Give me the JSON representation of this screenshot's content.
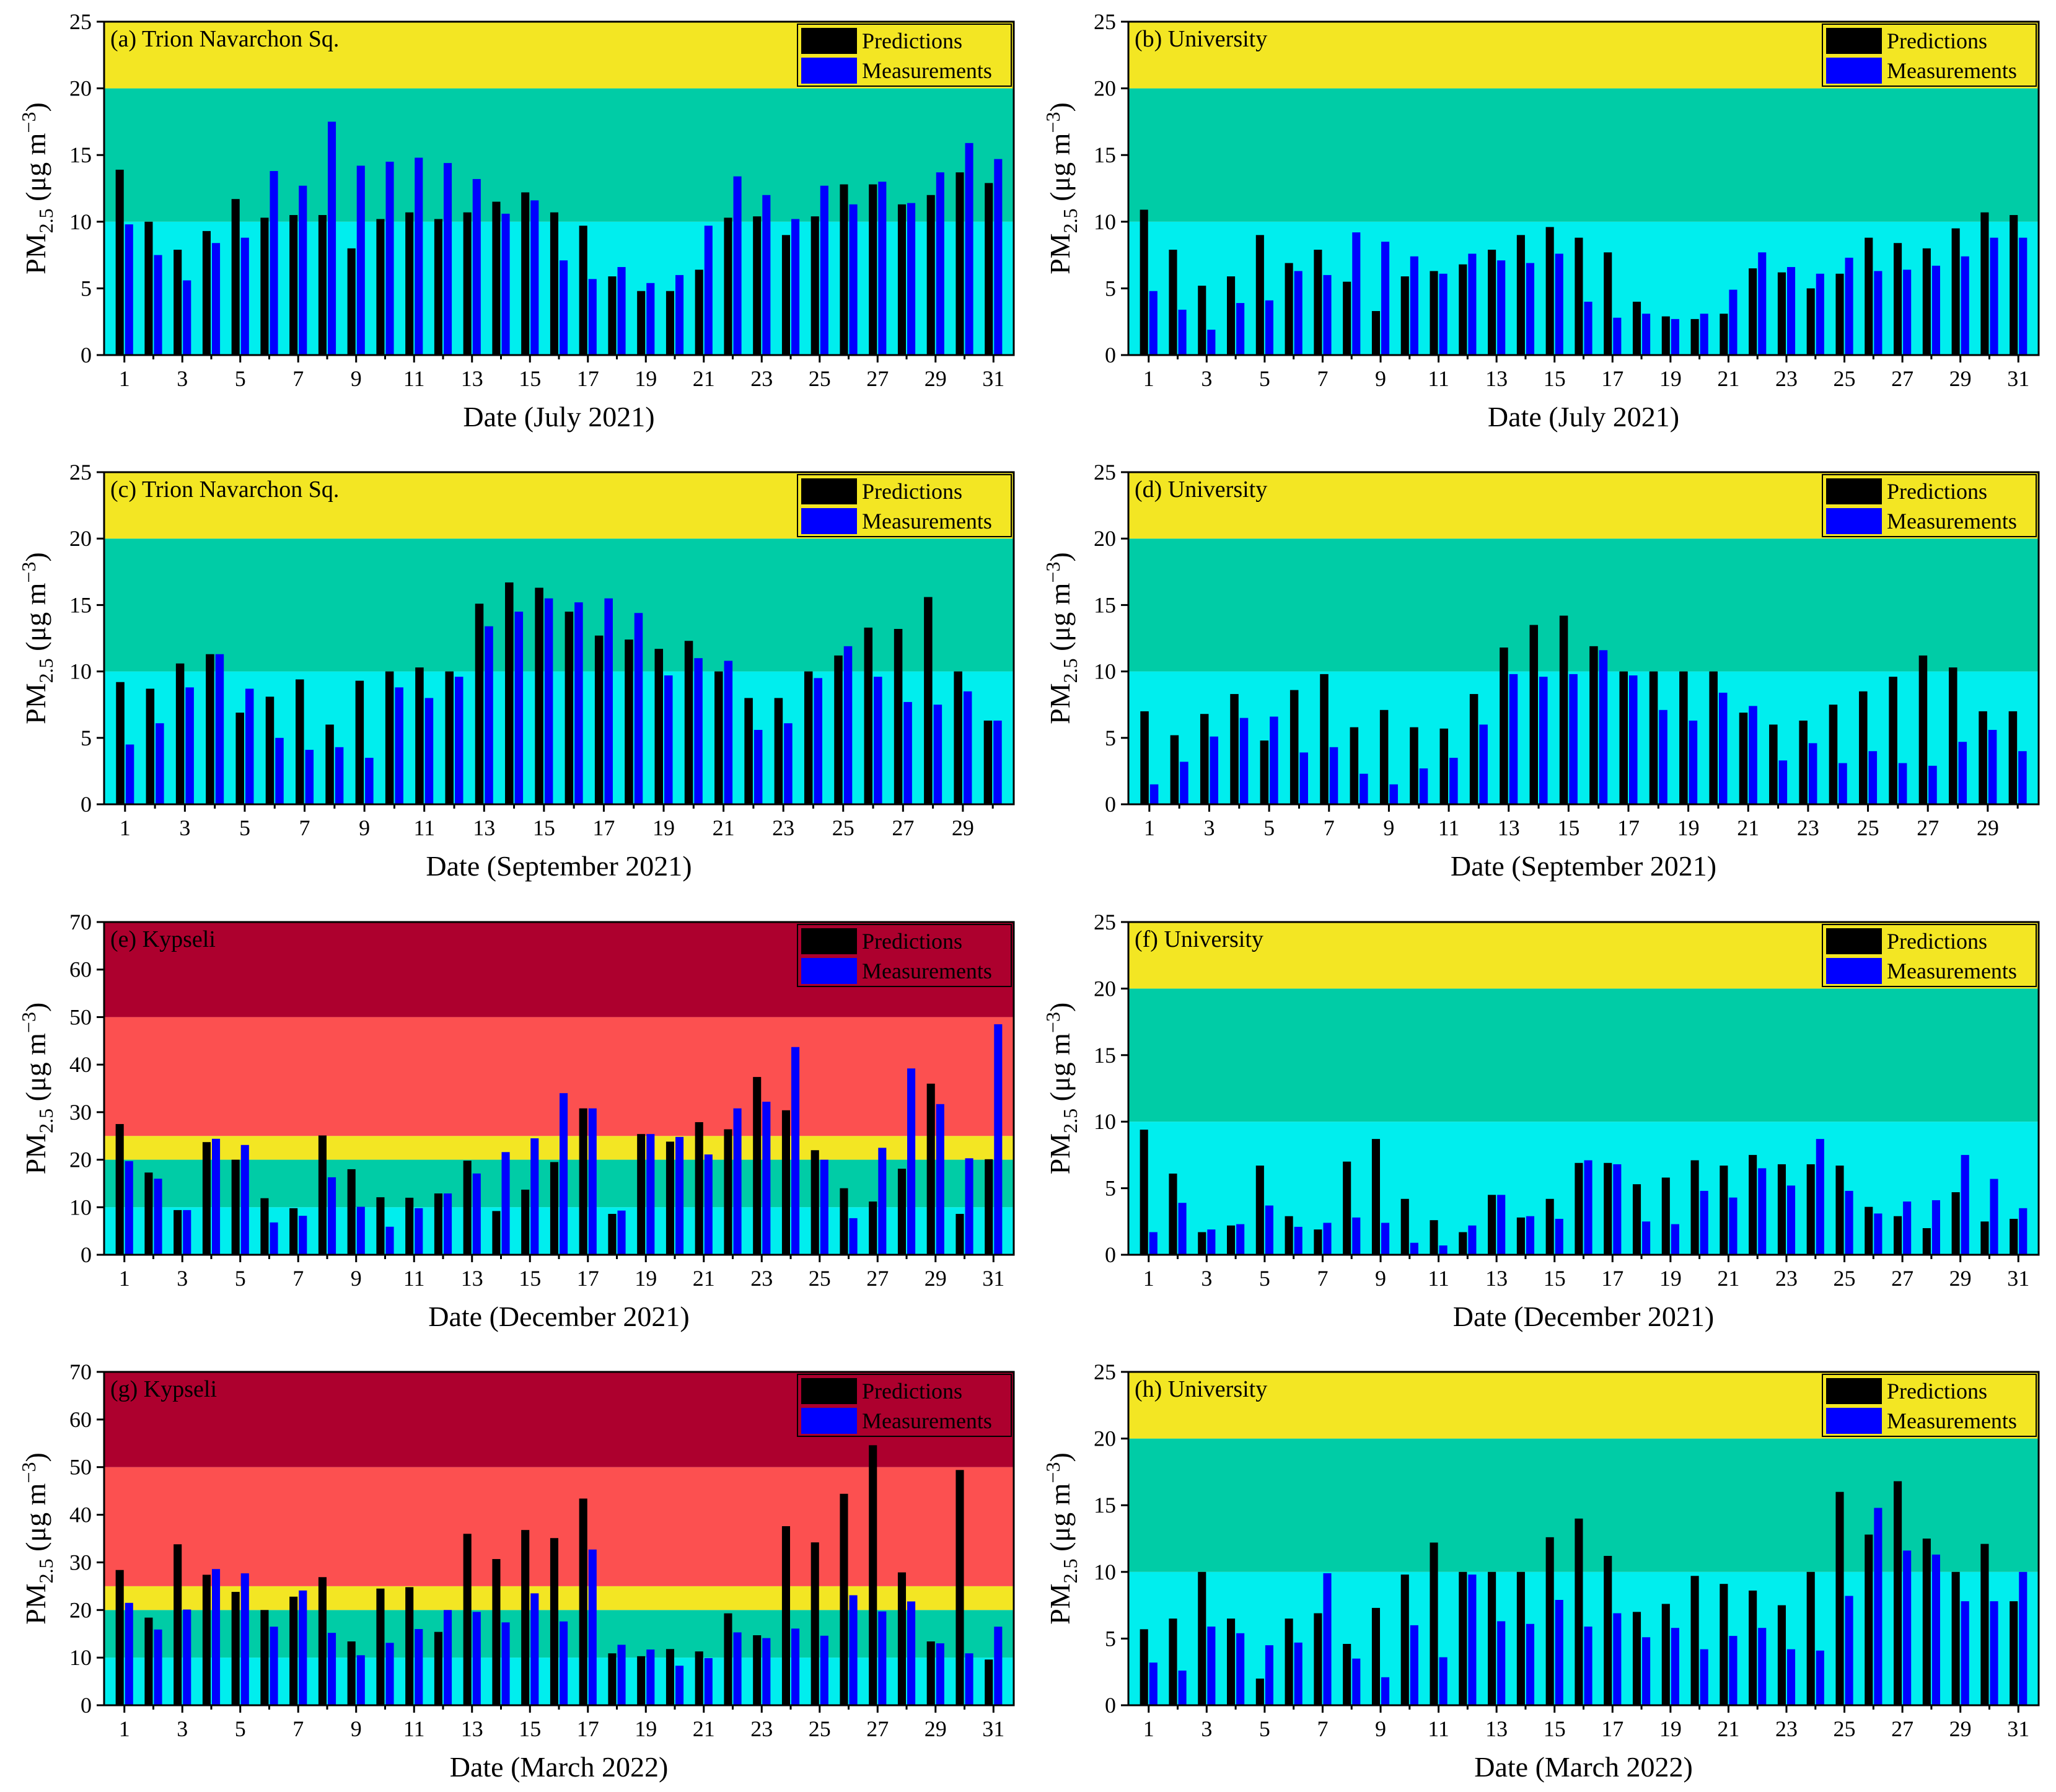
{
  "colors": {
    "prediction": "#000000",
    "measurement": "#0000ff",
    "band_cyan": "#00eeee",
    "band_teal": "#00cca6",
    "band_yellow": "#f3e623",
    "band_salmon": "#fc5050",
    "band_crimson": "#ad002e"
  },
  "chart_data": [
    {
      "type": "bar",
      "panel": "(a) Trion Navarchon Sq.",
      "xlabel": "Date (July 2021)",
      "ylabel": "PM2.5 (μg m−3)",
      "ylabel_base": "PM",
      "ylabel_sub": "2.5",
      "ylabel_unit": " (μg m",
      "ylabel_sup": "−3",
      "ylabel_end": ")",
      "ylim": [
        0,
        25
      ],
      "yticks": [
        0,
        5,
        10,
        15,
        20,
        25
      ],
      "xticks": [
        1,
        3,
        5,
        7,
        9,
        11,
        13,
        15,
        17,
        19,
        21,
        23,
        25,
        27,
        29,
        31
      ],
      "legend": [
        "Predictions",
        "Measurements"
      ],
      "legend_position": "top-right",
      "bands": [
        {
          "from": 0,
          "to": 10,
          "color": "#00eeee"
        },
        {
          "from": 10,
          "to": 20,
          "color": "#00cca6"
        },
        {
          "from": 20,
          "to": 25,
          "color": "#f3e623"
        }
      ],
      "series": [
        {
          "name": "Predictions",
          "values": [
            13.9,
            10.0,
            7.9,
            9.3,
            11.7,
            10.3,
            10.5,
            10.5,
            8.0,
            10.2,
            10.7,
            10.2,
            10.7,
            11.5,
            12.2,
            10.7,
            9.7,
            5.9,
            4.8,
            4.8,
            6.4,
            10.3,
            10.4,
            9.0,
            10.4,
            12.8,
            12.8,
            11.3,
            12.0,
            13.7,
            12.9
          ]
        },
        {
          "name": "Measurements",
          "values": [
            9.8,
            7.5,
            5.6,
            8.4,
            8.8,
            13.8,
            12.7,
            17.5,
            14.2,
            14.5,
            14.8,
            14.4,
            13.2,
            10.6,
            11.6,
            7.1,
            5.7,
            6.6,
            5.4,
            6.0,
            9.7,
            13.4,
            12.0,
            10.2,
            12.7,
            11.3,
            13.0,
            11.4,
            13.7,
            15.9,
            14.7
          ]
        }
      ]
    },
    {
      "type": "bar",
      "panel": "(b) University",
      "xlabel": "Date (July 2021)",
      "ylabel": "PM2.5 (μg m−3)",
      "ylabel_base": "PM",
      "ylabel_sub": "2.5",
      "ylabel_unit": " (μg m",
      "ylabel_sup": "−3",
      "ylabel_end": ")",
      "ylim": [
        0,
        25
      ],
      "yticks": [
        0,
        5,
        10,
        15,
        20,
        25
      ],
      "xticks": [
        1,
        3,
        5,
        7,
        9,
        11,
        13,
        15,
        17,
        19,
        21,
        23,
        25,
        27,
        29,
        31
      ],
      "legend": [
        "Predictions",
        "Measurements"
      ],
      "legend_position": "top-right",
      "bands": [
        {
          "from": 0,
          "to": 10,
          "color": "#00eeee"
        },
        {
          "from": 10,
          "to": 20,
          "color": "#00cca6"
        },
        {
          "from": 20,
          "to": 25,
          "color": "#f3e623"
        }
      ],
      "series": [
        {
          "name": "Predictions",
          "values": [
            10.9,
            7.9,
            5.2,
            5.9,
            9.0,
            6.9,
            7.9,
            5.5,
            3.3,
            5.9,
            6.3,
            6.8,
            7.9,
            9.0,
            9.6,
            8.8,
            7.7,
            4.0,
            2.9,
            2.7,
            3.1,
            6.5,
            6.2,
            5.0,
            6.1,
            8.8,
            8.4,
            8.0,
            9.5,
            10.7,
            10.5
          ]
        },
        {
          "name": "Measurements",
          "values": [
            4.8,
            3.4,
            1.9,
            3.9,
            4.1,
            6.3,
            6.0,
            9.2,
            8.5,
            7.4,
            6.1,
            7.6,
            7.1,
            6.9,
            7.6,
            4.0,
            2.8,
            3.1,
            2.7,
            3.1,
            4.9,
            7.7,
            6.6,
            6.1,
            7.3,
            6.3,
            6.4,
            6.7,
            7.4,
            8.8,
            8.8
          ]
        }
      ]
    },
    {
      "type": "bar",
      "panel": "(c) Trion Navarchon Sq.",
      "xlabel": "Date (September 2021)",
      "ylabel": "PM2.5 (μg m−3)",
      "ylabel_base": "PM",
      "ylabel_sub": "2.5",
      "ylabel_unit": " (μg m",
      "ylabel_sup": "−3",
      "ylabel_end": ")",
      "ylim": [
        0,
        25
      ],
      "yticks": [
        0,
        5,
        10,
        15,
        20,
        25
      ],
      "xticks": [
        1,
        3,
        5,
        7,
        9,
        11,
        13,
        15,
        17,
        19,
        21,
        23,
        25,
        27,
        29
      ],
      "legend": [
        "Predictions",
        "Measurements"
      ],
      "legend_position": "top-right",
      "bands": [
        {
          "from": 0,
          "to": 10,
          "color": "#00eeee"
        },
        {
          "from": 10,
          "to": 20,
          "color": "#00cca6"
        },
        {
          "from": 20,
          "to": 25,
          "color": "#f3e623"
        }
      ],
      "series": [
        {
          "name": "Predictions",
          "values": [
            9.2,
            8.7,
            10.6,
            11.3,
            6.9,
            8.1,
            9.4,
            6.0,
            9.3,
            10.0,
            10.3,
            10.0,
            15.1,
            16.7,
            16.3,
            14.5,
            12.7,
            12.4,
            11.7,
            12.3,
            10.0,
            8.0,
            8.0,
            10.0,
            11.2,
            13.3,
            13.2,
            15.6,
            10.0,
            6.3
          ]
        },
        {
          "name": "Measurements",
          "values": [
            4.5,
            6.1,
            8.8,
            11.3,
            8.7,
            5.0,
            4.1,
            4.3,
            3.5,
            8.8,
            8.0,
            9.6,
            13.4,
            14.5,
            15.5,
            15.2,
            15.5,
            14.4,
            9.7,
            11.0,
            10.8,
            5.6,
            6.1,
            9.5,
            11.9,
            9.6,
            7.7,
            7.5,
            8.5,
            6.3
          ]
        }
      ]
    },
    {
      "type": "bar",
      "panel": "(d) University",
      "xlabel": "Date (September 2021)",
      "ylabel": "PM2.5 (μg m−3)",
      "ylabel_base": "PM",
      "ylabel_sub": "2.5",
      "ylabel_unit": " (μg m",
      "ylabel_sup": "−3",
      "ylabel_end": ")",
      "ylim": [
        0,
        25
      ],
      "yticks": [
        0,
        5,
        10,
        15,
        20,
        25
      ],
      "xticks": [
        1,
        3,
        5,
        7,
        9,
        11,
        13,
        15,
        17,
        19,
        21,
        23,
        25,
        27,
        29
      ],
      "legend": [
        "Predictions",
        "Measurements"
      ],
      "legend_position": "top-right",
      "bands": [
        {
          "from": 0,
          "to": 10,
          "color": "#00eeee"
        },
        {
          "from": 10,
          "to": 20,
          "color": "#00cca6"
        },
        {
          "from": 20,
          "to": 25,
          "color": "#f3e623"
        }
      ],
      "series": [
        {
          "name": "Predictions",
          "values": [
            7.0,
            5.2,
            6.8,
            8.3,
            4.8,
            8.6,
            9.8,
            5.8,
            7.1,
            5.8,
            5.7,
            8.3,
            11.8,
            13.5,
            14.2,
            11.9,
            10.0,
            10.0,
            10.0,
            10.0,
            6.9,
            6.0,
            6.3,
            7.5,
            8.5,
            9.6,
            11.2,
            10.3,
            7.0,
            7.0
          ]
        },
        {
          "name": "Measurements",
          "values": [
            1.5,
            3.2,
            5.1,
            6.5,
            6.6,
            3.9,
            4.3,
            2.3,
            1.5,
            2.7,
            3.5,
            6.0,
            9.8,
            9.6,
            9.8,
            11.6,
            9.7,
            7.1,
            6.3,
            8.4,
            7.4,
            3.3,
            4.6,
            3.1,
            4.0,
            3.1,
            2.9,
            4.7,
            5.6,
            4.0
          ]
        }
      ]
    },
    {
      "type": "bar",
      "panel": "(e) Kypseli",
      "xlabel": "Date (December 2021)",
      "ylabel": "PM2.5 (μg m−3)",
      "ylabel_base": "PM",
      "ylabel_sub": "2.5",
      "ylabel_unit": " (μg m",
      "ylabel_sup": "−3",
      "ylabel_end": ")",
      "ylim": [
        0,
        70
      ],
      "yticks": [
        0,
        10,
        20,
        30,
        40,
        50,
        60,
        70
      ],
      "xticks": [
        1,
        3,
        5,
        7,
        9,
        11,
        13,
        15,
        17,
        19,
        21,
        23,
        25,
        27,
        29,
        31
      ],
      "legend": [
        "Predictions",
        "Measurements"
      ],
      "legend_position": "top-right",
      "bands": [
        {
          "from": 0,
          "to": 10,
          "color": "#00eeee"
        },
        {
          "from": 10,
          "to": 20,
          "color": "#00cca6"
        },
        {
          "from": 20,
          "to": 25,
          "color": "#f3e623"
        },
        {
          "from": 25,
          "to": 50,
          "color": "#fc5050"
        },
        {
          "from": 50,
          "to": 70,
          "color": "#ad002e"
        }
      ],
      "series": [
        {
          "name": "Predictions",
          "values": [
            27.5,
            17.3,
            9.4,
            23.7,
            20.0,
            11.9,
            9.8,
            25.1,
            18.0,
            12.1,
            12.0,
            12.9,
            19.8,
            9.2,
            13.7,
            19.5,
            30.8,
            8.6,
            25.4,
            23.8,
            27.9,
            26.4,
            37.4,
            30.4,
            22.0,
            14.0,
            11.2,
            18.1,
            36.0,
            8.6,
            20.1
          ]
        },
        {
          "name": "Measurements",
          "values": [
            19.7,
            16.0,
            9.4,
            24.4,
            23.1,
            6.8,
            8.2,
            16.3,
            10.1,
            5.9,
            9.8,
            12.9,
            17.1,
            21.6,
            24.5,
            34.0,
            30.8,
            9.3,
            25.4,
            24.8,
            21.1,
            30.8,
            32.2,
            43.7,
            20.0,
            7.7,
            22.5,
            39.2,
            31.7,
            20.3,
            48.5
          ]
        }
      ]
    },
    {
      "type": "bar",
      "panel": "(f) University",
      "xlabel": "Date (December 2021)",
      "ylabel": "PM2.5 (μg m−3)",
      "ylabel_base": "PM",
      "ylabel_sub": "2.5",
      "ylabel_unit": " (μg m",
      "ylabel_sup": "−3",
      "ylabel_end": ")",
      "ylim": [
        0,
        25
      ],
      "yticks": [
        0,
        5,
        10,
        15,
        20,
        25
      ],
      "xticks": [
        1,
        3,
        5,
        7,
        9,
        11,
        13,
        15,
        17,
        19,
        21,
        23,
        25,
        27,
        29,
        31
      ],
      "legend": [
        "Predictions",
        "Measurements"
      ],
      "legend_position": "top-right",
      "bands": [
        {
          "from": 0,
          "to": 10,
          "color": "#00eeee"
        },
        {
          "from": 10,
          "to": 20,
          "color": "#00cca6"
        },
        {
          "from": 20,
          "to": 25,
          "color": "#f3e623"
        }
      ],
      "series": [
        {
          "name": "Predictions",
          "values": [
            9.4,
            6.1,
            1.7,
            2.2,
            6.7,
            2.9,
            1.9,
            7.0,
            8.7,
            4.2,
            2.6,
            1.7,
            4.5,
            2.8,
            4.2,
            6.9,
            6.9,
            5.3,
            5.8,
            7.1,
            6.7,
            7.5,
            6.8,
            6.8,
            6.7,
            3.6,
            2.9,
            2.0,
            4.7,
            2.5,
            2.7
          ]
        },
        {
          "name": "Measurements",
          "values": [
            1.7,
            3.9,
            1.9,
            2.3,
            3.7,
            2.1,
            2.4,
            2.8,
            2.4,
            0.9,
            0.7,
            2.2,
            4.5,
            2.9,
            2.7,
            7.1,
            6.8,
            2.5,
            2.3,
            4.8,
            4.3,
            6.5,
            5.2,
            8.7,
            4.8,
            3.1,
            4.0,
            4.1,
            7.5,
            5.7,
            3.5
          ]
        }
      ]
    },
    {
      "type": "bar",
      "panel": "(g) Kypseli",
      "xlabel": "Date (March 2022)",
      "ylabel": "PM2.5 (μg m−3)",
      "ylabel_base": "PM",
      "ylabel_sub": "2.5",
      "ylabel_unit": " (μg m",
      "ylabel_sup": "−3",
      "ylabel_end": ")",
      "ylim": [
        0,
        70
      ],
      "yticks": [
        0,
        10,
        20,
        30,
        40,
        50,
        60,
        70
      ],
      "xticks": [
        1,
        3,
        5,
        7,
        9,
        11,
        13,
        15,
        17,
        19,
        21,
        23,
        25,
        27,
        29,
        31
      ],
      "legend": [
        "Predictions",
        "Measurements"
      ],
      "legend_position": "top-right",
      "bands": [
        {
          "from": 0,
          "to": 10,
          "color": "#00eeee"
        },
        {
          "from": 10,
          "to": 20,
          "color": "#00cca6"
        },
        {
          "from": 20,
          "to": 25,
          "color": "#f3e623"
        },
        {
          "from": 25,
          "to": 50,
          "color": "#fc5050"
        },
        {
          "from": 50,
          "to": 70,
          "color": "#ad002e"
        }
      ],
      "series": [
        {
          "name": "Predictions",
          "values": [
            28.4,
            18.4,
            33.8,
            27.4,
            23.8,
            20.0,
            22.8,
            26.9,
            13.4,
            24.5,
            24.8,
            15.4,
            36.0,
            30.7,
            36.8,
            35.1,
            43.4,
            10.9,
            10.3,
            11.8,
            11.3,
            19.3,
            14.7,
            37.6,
            34.2,
            44.4,
            54.6,
            27.9,
            13.4,
            49.4,
            9.6
          ]
        },
        {
          "name": "Measurements",
          "values": [
            21.5,
            15.9,
            20.1,
            28.6,
            27.7,
            16.5,
            24.1,
            15.2,
            10.5,
            13.1,
            16.0,
            20.0,
            19.6,
            17.4,
            23.5,
            17.6,
            32.7,
            12.7,
            11.7,
            8.3,
            9.9,
            15.3,
            14.1,
            16.1,
            14.6,
            23.1,
            19.7,
            21.8,
            13.0,
            10.9,
            16.5
          ]
        }
      ]
    },
    {
      "type": "bar",
      "panel": "(h) University",
      "xlabel": "Date (March 2022)",
      "ylabel": "PM2.5 (μg m−3)",
      "ylabel_base": "PM",
      "ylabel_sub": "2.5",
      "ylabel_unit": " (μg m",
      "ylabel_sup": "−3",
      "ylabel_end": ")",
      "ylim": [
        0,
        25
      ],
      "yticks": [
        0,
        5,
        10,
        15,
        20,
        25
      ],
      "xticks": [
        1,
        3,
        5,
        7,
        9,
        11,
        13,
        15,
        17,
        19,
        21,
        23,
        25,
        27,
        29,
        31
      ],
      "legend": [
        "Predictions",
        "Measurements"
      ],
      "legend_position": "top-right",
      "bands": [
        {
          "from": 0,
          "to": 10,
          "color": "#00eeee"
        },
        {
          "from": 10,
          "to": 20,
          "color": "#00cca6"
        },
        {
          "from": 20,
          "to": 25,
          "color": "#f3e623"
        }
      ],
      "series": [
        {
          "name": "Predictions",
          "values": [
            5.7,
            6.5,
            10.0,
            6.5,
            2.0,
            6.5,
            6.9,
            4.6,
            7.3,
            9.8,
            12.2,
            10.0,
            10.0,
            10.0,
            12.6,
            14.0,
            11.2,
            7.0,
            7.6,
            9.7,
            9.1,
            8.6,
            7.5,
            10.0,
            16.0,
            12.8,
            16.8,
            12.5,
            10.0,
            12.1,
            7.8
          ]
        },
        {
          "name": "Measurements",
          "values": [
            3.2,
            2.6,
            5.9,
            5.4,
            4.5,
            4.7,
            9.9,
            3.5,
            2.1,
            6.0,
            3.6,
            9.8,
            6.3,
            6.1,
            7.9,
            5.9,
            6.9,
            5.1,
            5.8,
            4.2,
            5.2,
            5.8,
            4.2,
            4.1,
            8.2,
            14.8,
            11.6,
            11.3,
            7.8,
            7.8,
            10.0
          ]
        }
      ]
    }
  ]
}
